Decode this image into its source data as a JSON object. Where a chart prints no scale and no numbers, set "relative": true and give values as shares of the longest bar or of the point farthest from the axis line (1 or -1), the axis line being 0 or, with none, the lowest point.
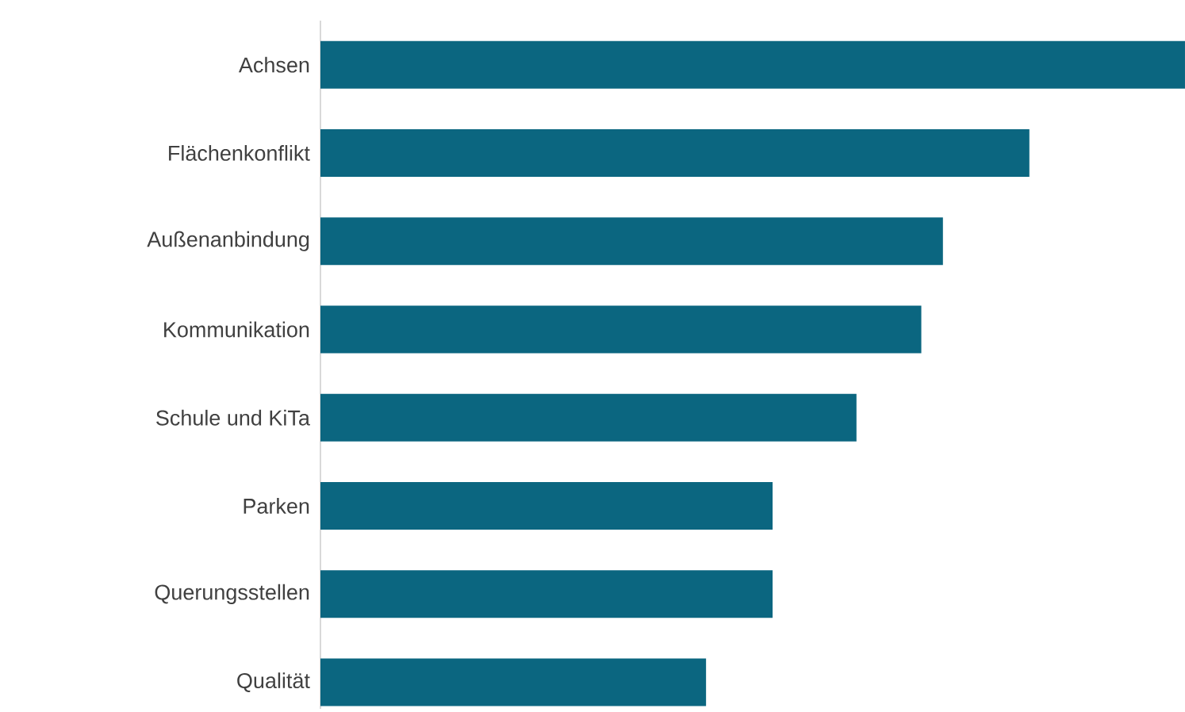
{
  "chart_data": {
    "type": "bar",
    "orientation": "horizontal",
    "relative": true,
    "categories": [
      "Achsen",
      "Flächenkonflikt",
      "Außenanbindung",
      "Kommunikation",
      "Schule und KiTa",
      "Parken",
      "Querungsstellen",
      "Qualität"
    ],
    "values": [
      1,
      0.82,
      0.72,
      0.695,
      0.62,
      0.523,
      0.523,
      0.446
    ],
    "color": "#0b6680"
  }
}
